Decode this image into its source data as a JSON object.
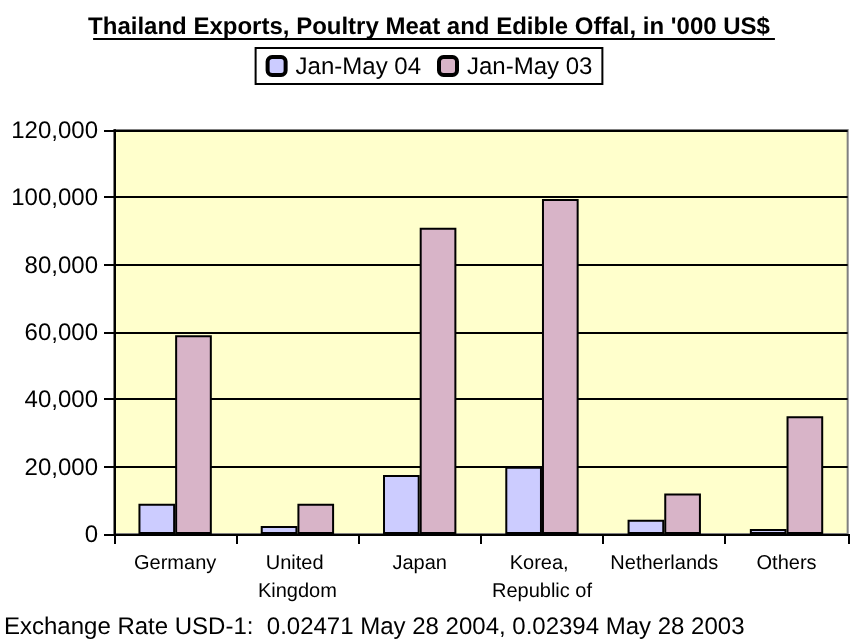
{
  "chart_data": {
    "type": "bar",
    "title": "Thailand Exports, Poultry Meat and Edible Offal, in '000 US$",
    "categories": [
      "Germany",
      "United Kingdom",
      "Japan",
      "Korea, Republic of",
      "Netherlands",
      "Others"
    ],
    "series": [
      {
        "name": "Jan-May 04",
        "color": "#ccccff",
        "values": [
          9000,
          2400,
          17500,
          20000,
          4200,
          1500
        ]
      },
      {
        "name": "Jan-May 03",
        "color": "#d8b4c8",
        "values": [
          59000,
          9000,
          91000,
          99500,
          12000,
          35000
        ]
      }
    ],
    "ylim": [
      0,
      120000
    ],
    "yticks": [
      0,
      {
        "value": 20000,
        "label": "20,000"
      },
      {
        "value": 40000,
        "label": "40,000"
      },
      {
        "value": 60000,
        "label": "60,000"
      },
      {
        "value": 80000,
        "label": "80,000"
      },
      {
        "value": 100000,
        "label": "100,000"
      },
      {
        "value": 120000,
        "label": "120,000"
      }
    ],
    "grid": "y",
    "legend": "top",
    "annotations": [
      "Exchange Rate USD-1:  0.02471 May 28 2004, 0.02394 May 28 2003"
    ]
  }
}
